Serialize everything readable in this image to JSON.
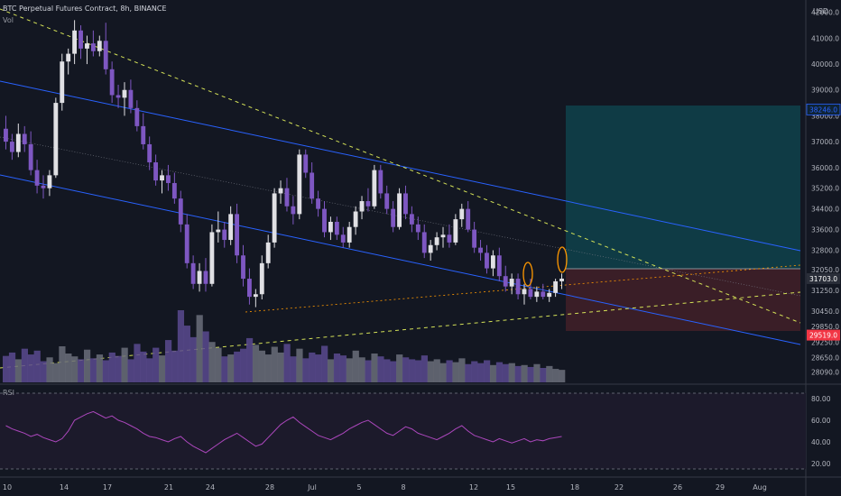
{
  "header": {
    "title": "BTC Perpetual Futures Contract, 8h, BINANCE",
    "vol_label": "Vol",
    "rsi_label": "RSI"
  },
  "price_axis": {
    "currency": "USD",
    "ticks": [
      "42000.0",
      "41000.0",
      "40000.0",
      "39000.0",
      "38000.0",
      "37000.0",
      "36000.0",
      "35200.0",
      "34400.0",
      "33600.0",
      "32800.0",
      "32050.0",
      "31250.0",
      "30450.0",
      "29850.0",
      "29250.0",
      "28650.0",
      "28090.0"
    ],
    "badges": [
      {
        "text": "38246.0",
        "color": "#2962ff",
        "bg": "#0f2333"
      },
      {
        "text": "31703.0",
        "color": "#ffffff",
        "bg": "#2a2e39"
      },
      {
        "text": "29519.0",
        "color": "#ffffff",
        "bg": "#f23645"
      }
    ]
  },
  "rsi_axis": {
    "ticks": [
      "80.00",
      "60.00",
      "40.00",
      "20.00"
    ]
  },
  "time_axis": {
    "ticks": [
      "10",
      "14",
      "17",
      "21",
      "24",
      "28",
      "Jul",
      "5",
      "8",
      "12",
      "15",
      "18",
      "22",
      "26",
      "29",
      "Aug"
    ]
  },
  "colors": {
    "background": "#131722",
    "bull": "#e0e0e4",
    "bear": "#7e57c2",
    "channel": "#2962ff",
    "trend": "#d4e157",
    "orange": "#ff9800",
    "target_zone": "#133a46",
    "stop_zone": "#3a1e27",
    "rsi_line": "#ab47bc"
  },
  "chart_data": {
    "type": "candlestick",
    "timeframe": "8h",
    "ohlc": [
      [
        37500,
        38000,
        36700,
        37000
      ],
      [
        37000,
        37300,
        36300,
        36600
      ],
      [
        36600,
        37700,
        36400,
        37300
      ],
      [
        37300,
        37600,
        36600,
        36900
      ],
      [
        36900,
        37400,
        35700,
        35900
      ],
      [
        35900,
        36300,
        35000,
        35300
      ],
      [
        35300,
        35700,
        34800,
        35200
      ],
      [
        35200,
        35900,
        34900,
        35700
      ],
      [
        35700,
        38700,
        35600,
        38500
      ],
      [
        38500,
        40400,
        38200,
        40100
      ],
      [
        40100,
        40600,
        39600,
        40400
      ],
      [
        40400,
        41700,
        40000,
        41300
      ],
      [
        41300,
        41500,
        40200,
        40600
      ],
      [
        40600,
        41100,
        40000,
        40800
      ],
      [
        40800,
        41300,
        40300,
        40500
      ],
      [
        40500,
        41100,
        40300,
        40900
      ],
      [
        40900,
        41600,
        39600,
        39800
      ],
      [
        39800,
        40100,
        38500,
        38800
      ],
      [
        38800,
        39200,
        38300,
        38700
      ],
      [
        38700,
        39300,
        38000,
        39000
      ],
      [
        39000,
        39400,
        38100,
        38300
      ],
      [
        38300,
        38600,
        37400,
        37600
      ],
      [
        37600,
        38100,
        36700,
        36900
      ],
      [
        36900,
        37200,
        35900,
        36200
      ],
      [
        36200,
        36500,
        35300,
        35500
      ],
      [
        35500,
        35900,
        35000,
        35700
      ],
      [
        35700,
        36100,
        35100,
        35400
      ],
      [
        35400,
        35800,
        34600,
        34800
      ],
      [
        34800,
        35100,
        33500,
        33800
      ],
      [
        33800,
        34200,
        32100,
        32300
      ],
      [
        32300,
        32600,
        31300,
        31500
      ],
      [
        31500,
        32300,
        31200,
        32000
      ],
      [
        32000,
        32500,
        31200,
        31500
      ],
      [
        31500,
        33800,
        31400,
        33500
      ],
      [
        33500,
        34300,
        33100,
        33600
      ],
      [
        33600,
        33900,
        32900,
        33200
      ],
      [
        33200,
        34500,
        33000,
        34200
      ],
      [
        34200,
        34600,
        32300,
        32600
      ],
      [
        32600,
        33000,
        31400,
        31700
      ],
      [
        31700,
        32100,
        30700,
        31000
      ],
      [
        31000,
        31300,
        30600,
        31100
      ],
      [
        31100,
        32600,
        30900,
        32300
      ],
      [
        32300,
        33400,
        32100,
        33100
      ],
      [
        33100,
        35200,
        32900,
        35000
      ],
      [
        35000,
        35500,
        34600,
        35200
      ],
      [
        35200,
        35600,
        34300,
        34500
      ],
      [
        34500,
        34900,
        33800,
        34200
      ],
      [
        34200,
        36700,
        34000,
        36500
      ],
      [
        36500,
        36700,
        35600,
        35800
      ],
      [
        35800,
        36200,
        34600,
        34800
      ],
      [
        34800,
        35100,
        34100,
        34400
      ],
      [
        34400,
        34700,
        33300,
        33500
      ],
      [
        33500,
        34100,
        33200,
        33900
      ],
      [
        33900,
        34100,
        33200,
        33400
      ],
      [
        33400,
        33700,
        32900,
        33100
      ],
      [
        33100,
        33900,
        32900,
        33700
      ],
      [
        33700,
        34500,
        33400,
        34300
      ],
      [
        34300,
        34900,
        34000,
        34700
      ],
      [
        34700,
        35200,
        34300,
        34500
      ],
      [
        34500,
        36100,
        34400,
        35900
      ],
      [
        35900,
        36100,
        34800,
        35000
      ],
      [
        35000,
        35300,
        34200,
        34400
      ],
      [
        34400,
        34700,
        33500,
        33700
      ],
      [
        33700,
        35200,
        33600,
        35000
      ],
      [
        35000,
        35300,
        34000,
        34200
      ],
      [
        34200,
        34500,
        33500,
        33800
      ],
      [
        33800,
        34100,
        33200,
        33500
      ],
      [
        33500,
        33800,
        32500,
        32700
      ],
      [
        32700,
        33200,
        32400,
        33000
      ],
      [
        33000,
        33500,
        32800,
        33300
      ],
      [
        33300,
        33700,
        32900,
        33400
      ],
      [
        33400,
        33800,
        32900,
        33100
      ],
      [
        33100,
        34200,
        33000,
        34000
      ],
      [
        34000,
        34600,
        33700,
        34400
      ],
      [
        34400,
        34700,
        33500,
        33600
      ],
      [
        33600,
        33900,
        32700,
        32900
      ],
      [
        32900,
        33200,
        32400,
        32700
      ],
      [
        32700,
        33000,
        31900,
        32100
      ],
      [
        32100,
        32800,
        31800,
        32600
      ],
      [
        32600,
        32900,
        31600,
        31800
      ],
      [
        31800,
        32200,
        31200,
        31400
      ],
      [
        31400,
        31900,
        31100,
        31700
      ],
      [
        31700,
        31900,
        30900,
        31100
      ],
      [
        31100,
        31500,
        30700,
        31300
      ],
      [
        31300,
        31700,
        30900,
        31000
      ],
      [
        31000,
        31400,
        30800,
        31200
      ],
      [
        31200,
        31500,
        30900,
        31000
      ],
      [
        31000,
        31300,
        30800,
        31150
      ],
      [
        31150,
        31700,
        31000,
        31600
      ],
      [
        31600,
        31900,
        31300,
        31703
      ]
    ],
    "volume": [
      55,
      62,
      48,
      70,
      58,
      66,
      44,
      52,
      40,
      75,
      60,
      54,
      48,
      68,
      50,
      58,
      46,
      62,
      55,
      72,
      48,
      80,
      64,
      50,
      72,
      56,
      88,
      66,
      150,
      118,
      94,
      140,
      106,
      84,
      72,
      54,
      58,
      64,
      70,
      92,
      78,
      66,
      58,
      74,
      62,
      80,
      54,
      70,
      50,
      62,
      58,
      76,
      48,
      60,
      56,
      50,
      66,
      52,
      46,
      60,
      54,
      48,
      44,
      58,
      52,
      48,
      46,
      56,
      44,
      48,
      40,
      46,
      42,
      50,
      38,
      44,
      40,
      46,
      36,
      42,
      38,
      40,
      34,
      36,
      32,
      38,
      30,
      34,
      28,
      26
    ],
    "rsi": [
      55,
      52,
      50,
      48,
      45,
      47,
      44,
      42,
      40,
      43,
      50,
      60,
      63,
      66,
      68,
      65,
      62,
      64,
      60,
      58,
      55,
      52,
      48,
      45,
      44,
      42,
      40,
      43,
      45,
      40,
      36,
      33,
      30,
      34,
      38,
      42,
      45,
      48,
      44,
      40,
      36,
      38,
      44,
      50,
      56,
      60,
      63,
      58,
      54,
      50,
      46,
      44,
      42,
      45,
      48,
      52,
      55,
      58,
      60,
      56,
      52,
      48,
      46,
      50,
      54,
      52,
      48,
      46,
      44,
      42,
      45,
      48,
      52,
      55,
      50,
      46,
      44,
      42,
      40,
      43,
      41,
      39,
      41,
      43,
      40,
      42,
      41,
      43,
      44,
      45
    ],
    "price_range": [
      27900,
      42200
    ],
    "rsi_range": [
      15,
      85
    ],
    "position": {
      "target": 38246.0,
      "entry": 31703.0,
      "stop": 29519.0
    }
  }
}
